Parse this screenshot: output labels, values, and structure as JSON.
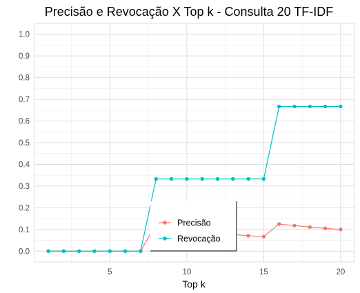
{
  "chart_data": {
    "type": "line",
    "title": "Precisão e Revocação X Top k - Consulta 20 TF-IDF",
    "xlabel": "Top k",
    "ylabel": "",
    "xlim": [
      0.1,
      20.9
    ],
    "ylim": [
      -0.05,
      1.05
    ],
    "x_ticks": [
      5,
      10,
      15,
      20
    ],
    "y_ticks": [
      0.0,
      0.1,
      0.2,
      0.3,
      0.4,
      0.5,
      0.6,
      0.7,
      0.8,
      0.9,
      1.0
    ],
    "x_tick_labels": [
      "5",
      "10",
      "15",
      "20"
    ],
    "y_tick_labels": [
      "0.0",
      "0.1",
      "0.2",
      "0.3",
      "0.4",
      "0.5",
      "0.6",
      "0.7",
      "0.8",
      "0.9",
      "1.0"
    ],
    "grid": true,
    "legend_position": "inside-bottom-center",
    "x": [
      1,
      2,
      3,
      4,
      5,
      6,
      7,
      8,
      9,
      10,
      11,
      12,
      13,
      14,
      15,
      16,
      17,
      18,
      19,
      20
    ],
    "series": [
      {
        "name": "Precisão",
        "color": "#F8766D",
        "values": [
          0,
          0,
          0,
          0,
          0,
          0,
          0,
          0.125,
          0.111,
          0.1,
          0.091,
          0.083,
          0.077,
          0.071,
          0.067,
          0.125,
          0.118,
          0.111,
          0.105,
          0.1
        ]
      },
      {
        "name": "Revocação",
        "color": "#00BFC4",
        "values": [
          0,
          0,
          0,
          0,
          0,
          0,
          0,
          0.333,
          0.333,
          0.333,
          0.333,
          0.333,
          0.333,
          0.333,
          0.333,
          0.667,
          0.667,
          0.667,
          0.667,
          0.667
        ]
      }
    ]
  }
}
